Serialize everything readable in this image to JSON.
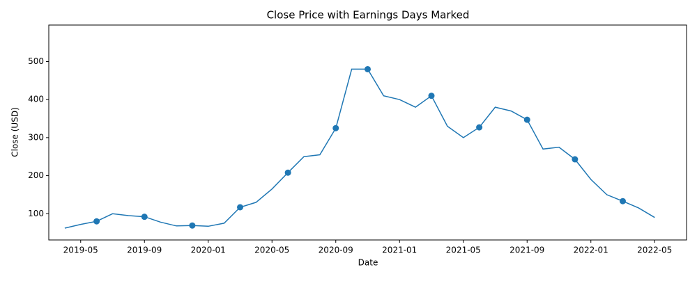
{
  "chart_data": {
    "type": "line",
    "title": "Close Price with Earnings Days Marked",
    "x_label": "Date",
    "y_label": "Close (USD)",
    "x": [
      "2019-04",
      "2019-05",
      "2019-06",
      "2019-07",
      "2019-08",
      "2019-09",
      "2019-10",
      "2019-11",
      "2019-12",
      "2020-01",
      "2020-02",
      "2020-03",
      "2020-04",
      "2020-05",
      "2020-06",
      "2020-07",
      "2020-08",
      "2020-09",
      "2020-10",
      "2020-11",
      "2020-12",
      "2021-01",
      "2021-02",
      "2021-03",
      "2021-04",
      "2021-05",
      "2021-06",
      "2021-07",
      "2021-08",
      "2021-09",
      "2021-10",
      "2021-11",
      "2021-12",
      "2022-01",
      "2022-02",
      "2022-03",
      "2022-04",
      "2022-05"
    ],
    "values": [
      62,
      72,
      80,
      100,
      95,
      92,
      78,
      68,
      69,
      67,
      75,
      117,
      130,
      165,
      208,
      250,
      255,
      325,
      480,
      480,
      410,
      400,
      380,
      410,
      330,
      300,
      327,
      380,
      370,
      347,
      270,
      275,
      243,
      190,
      150,
      133,
      115,
      90
    ],
    "color": "#1f77b4",
    "markers": {
      "x": [
        "2019-06",
        "2019-09",
        "2019-12",
        "2020-03",
        "2020-06",
        "2020-09",
        "2020-11",
        "2021-03",
        "2021-06",
        "2021-09",
        "2021-12",
        "2022-03"
      ],
      "values": [
        80,
        92,
        69,
        117,
        208,
        325,
        480,
        410,
        327,
        347,
        243,
        133
      ]
    },
    "xlim": [
      "2019-03",
      "2022-07"
    ],
    "xticks": [
      "2019-05",
      "2019-09",
      "2020-01",
      "2020-05",
      "2020-09",
      "2021-01",
      "2021-05",
      "2021-09",
      "2022-01",
      "2022-05"
    ],
    "ylim": [
      31,
      596
    ],
    "yticks": [
      100,
      200,
      300,
      400,
      500
    ]
  }
}
